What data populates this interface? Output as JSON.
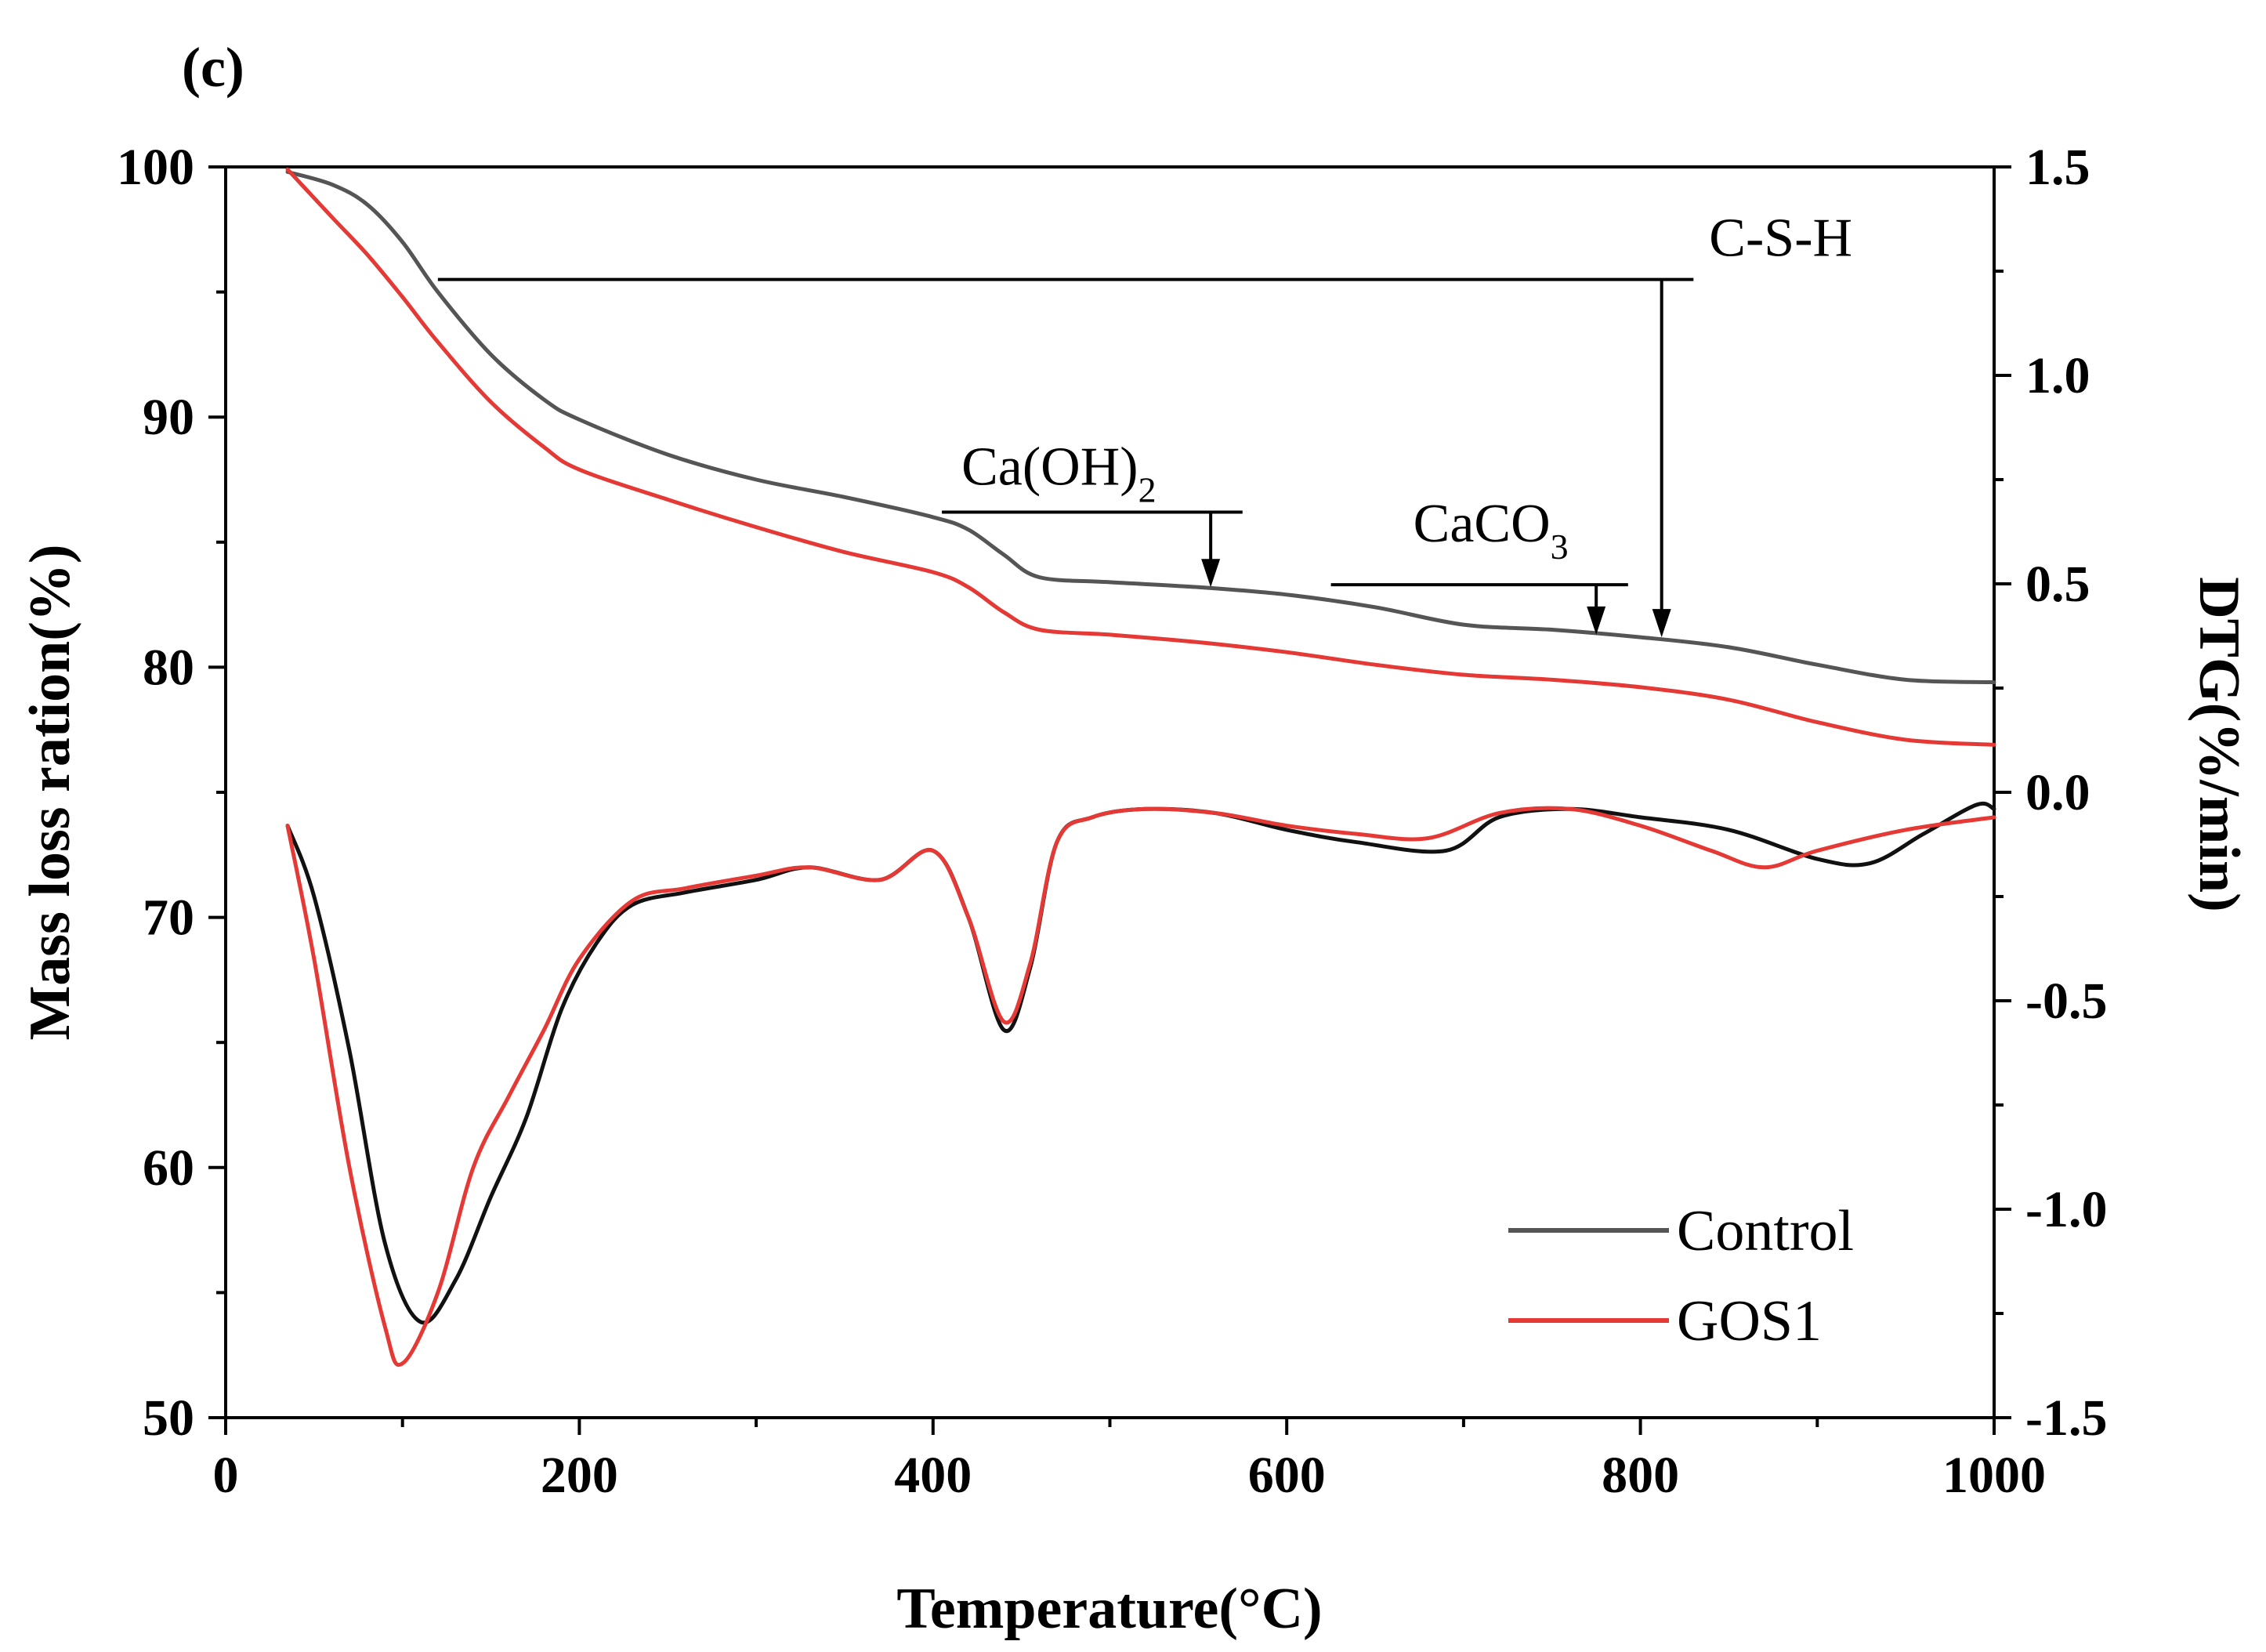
{
  "panel_label": "(c)",
  "chart_data": {
    "type": "line",
    "title": "",
    "xlabel": "Temperature(°C)",
    "ylabel_left": "Mass loss ration(%)",
    "ylabel_right": "DTG(%/min)",
    "xlim": [
      0,
      1000
    ],
    "ylim_left": [
      50,
      100
    ],
    "ylim_right": [
      -1.5,
      1.5
    ],
    "x_ticks": [
      "0",
      "200",
      "400",
      "600",
      "800",
      "1000"
    ],
    "y_left_ticks": [
      "50",
      "60",
      "70",
      "80",
      "90",
      "100"
    ],
    "y_right_ticks": [
      "-1.5",
      "-1.0",
      "-0.5",
      "0.0",
      "0.5",
      "1.0",
      "1.5"
    ],
    "grid": false,
    "legend": {
      "position": "bottom-right",
      "entries": [
        {
          "label": "Control",
          "color": "#555555"
        },
        {
          "label": "GOS1",
          "color": "#e53935"
        }
      ]
    },
    "series": [
      {
        "name": "Control",
        "kind": "TG",
        "axis": "left",
        "color": "#555555",
        "x": [
          35,
          60,
          80,
          100,
          120,
          150,
          180,
          200,
          250,
          300,
          350,
          400,
          420,
          440,
          460,
          500,
          550,
          600,
          650,
          700,
          750,
          800,
          850,
          900,
          950,
          1000
        ],
        "y": [
          99.8,
          99.3,
          98.5,
          97.0,
          95.0,
          92.5,
          90.7,
          89.9,
          88.5,
          87.5,
          86.8,
          86.0,
          85.5,
          84.5,
          83.6,
          83.4,
          83.2,
          82.9,
          82.4,
          81.7,
          81.5,
          81.2,
          80.8,
          80.1,
          79.5,
          79.4
        ]
      },
      {
        "name": "GOS1",
        "kind": "TG",
        "axis": "left",
        "color": "#e53935",
        "x": [
          35,
          60,
          80,
          100,
          120,
          150,
          180,
          200,
          250,
          300,
          350,
          400,
          420,
          440,
          460,
          500,
          550,
          600,
          650,
          700,
          750,
          800,
          850,
          900,
          950,
          1000
        ],
        "y": [
          99.9,
          98.0,
          96.5,
          94.8,
          93.0,
          90.6,
          88.8,
          87.9,
          86.7,
          85.6,
          84.6,
          83.8,
          83.2,
          82.2,
          81.5,
          81.3,
          81.0,
          80.6,
          80.1,
          79.7,
          79.5,
          79.2,
          78.7,
          77.8,
          77.1,
          76.9
        ]
      },
      {
        "name": "Control",
        "kind": "DTG",
        "axis": "right",
        "color": "#111111",
        "x": [
          35,
          50,
          70,
          90,
          110,
          130,
          150,
          170,
          190,
          210,
          230,
          260,
          300,
          330,
          370,
          400,
          420,
          440,
          455,
          470,
          490,
          520,
          560,
          600,
          640,
          690,
          720,
          760,
          800,
          850,
          900,
          930,
          960,
          990,
          1000
        ],
        "y": [
          -0.08,
          -0.25,
          -0.62,
          -1.08,
          -1.27,
          -1.17,
          -0.97,
          -0.78,
          -0.52,
          -0.36,
          -0.27,
          -0.24,
          -0.21,
          -0.18,
          -0.21,
          -0.14,
          -0.3,
          -0.57,
          -0.42,
          -0.12,
          -0.06,
          -0.04,
          -0.05,
          -0.09,
          -0.12,
          -0.14,
          -0.06,
          -0.04,
          -0.06,
          -0.09,
          -0.16,
          -0.17,
          -0.1,
          -0.03,
          -0.04
        ]
      },
      {
        "name": "GOS1",
        "kind": "DTG",
        "axis": "right",
        "color": "#e53935",
        "x": [
          35,
          50,
          70,
          90,
          100,
          120,
          140,
          160,
          180,
          200,
          230,
          260,
          300,
          330,
          370,
          400,
          420,
          440,
          455,
          470,
          490,
          520,
          560,
          600,
          640,
          680,
          720,
          760,
          800,
          840,
          870,
          900,
          950,
          1000
        ],
        "y": [
          -0.08,
          -0.4,
          -0.9,
          -1.28,
          -1.37,
          -1.2,
          -0.9,
          -0.73,
          -0.57,
          -0.4,
          -0.26,
          -0.23,
          -0.2,
          -0.18,
          -0.21,
          -0.14,
          -0.3,
          -0.55,
          -0.41,
          -0.12,
          -0.06,
          -0.04,
          -0.05,
          -0.08,
          -0.1,
          -0.11,
          -0.05,
          -0.04,
          -0.08,
          -0.14,
          -0.18,
          -0.14,
          -0.09,
          -0.06
        ]
      }
    ],
    "annotations": [
      {
        "label": "C-S-H",
        "line_x": [
          120,
          830
        ],
        "line_y_left": 95.5,
        "arrow_x": 812,
        "arrow_to_y_left": 81.2
      },
      {
        "label_main": "Ca(OH)",
        "label_sub": "2",
        "line_x": [
          405,
          575
        ],
        "line_y_left": 86.2,
        "arrow_x": 557,
        "arrow_to_y_left": 83.2
      },
      {
        "label_main": "CaCO",
        "label_sub": "3",
        "line_x": [
          625,
          793
        ],
        "line_y_left": 83.3,
        "arrow_x": 775,
        "arrow_to_y_left": 81.3
      }
    ]
  }
}
